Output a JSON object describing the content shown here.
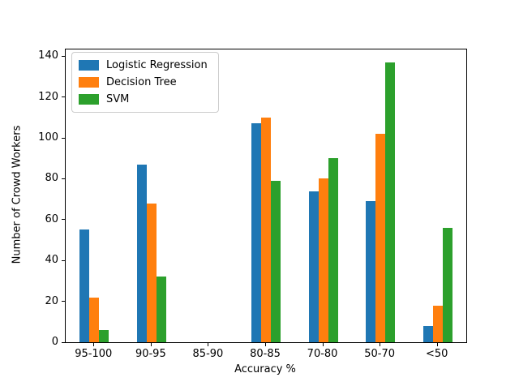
{
  "chart_data": {
    "type": "bar",
    "title": "",
    "xlabel": "Accuracy %",
    "ylabel": "Number of Crowd Workers",
    "categories": [
      "95-100",
      "90-95",
      "85-90",
      "80-85",
      "70-80",
      "50-70",
      "<50"
    ],
    "series": [
      {
        "name": "Logistic Regression",
        "color": "#1f77b4",
        "values": [
          55,
          87,
          0,
          107,
          74,
          69,
          8
        ]
      },
      {
        "name": "Decision Tree",
        "color": "#ff7f0e",
        "values": [
          22,
          68,
          0,
          110,
          80,
          102,
          18
        ]
      },
      {
        "name": "SVM",
        "color": "#2ca02c",
        "values": [
          6,
          32,
          0,
          79,
          90,
          137,
          56
        ]
      }
    ],
    "yticks": [
      0,
      20,
      40,
      60,
      80,
      100,
      120,
      140
    ],
    "ylim": [
      0,
      143.3
    ],
    "legend_position": "upper-left",
    "grid": false,
    "axis_color": "#000000"
  }
}
